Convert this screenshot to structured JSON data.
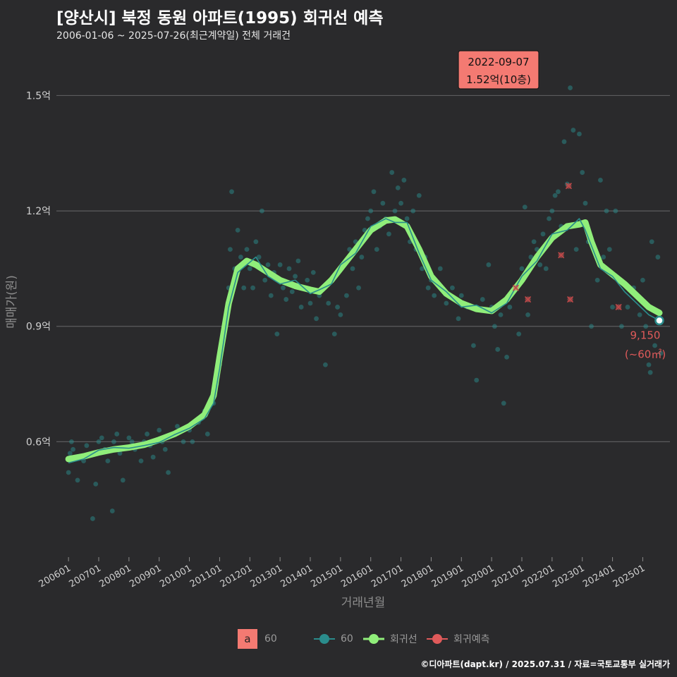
{
  "title": "[양산시] 북정 동원 아파트(1995) 회귀선 예측",
  "subtitle": "2006-01-06 ~ 2025-07-26(최근계약일) 전체 거래건",
  "caption": "©디아파트(dapt.kr) / 2025.07.31 / 자료=국토교통부 실거래가",
  "legend": {
    "fill_label": "a",
    "fill_value": "60",
    "items": [
      {
        "key": "area",
        "label": "60",
        "color": "#2a8c8c"
      },
      {
        "key": "regression",
        "label": "회귀선",
        "color": "#90ee7a"
      },
      {
        "key": "prediction",
        "label": "회귀예측",
        "color": "#e05a5a"
      }
    ]
  },
  "chart_data": {
    "type": "scatter",
    "xlabel": "거래년월",
    "ylabel": "매매가(원)",
    "x_ticks": [
      "200601",
      "200701",
      "200801",
      "200901",
      "201001",
      "201101",
      "201201",
      "201301",
      "201401",
      "201501",
      "201601",
      "201701",
      "201801",
      "201901",
      "202001",
      "202101",
      "202201",
      "202301",
      "202401",
      "202501"
    ],
    "y_ticks": [
      {
        "value": 0.6,
        "label": "0.6억"
      },
      {
        "value": 0.9,
        "label": "0.9억"
      },
      {
        "value": 1.2,
        "label": "1.2억"
      },
      {
        "value": 1.5,
        "label": "1.5억"
      }
    ],
    "xlim": [
      2005.6,
      2025.9
    ],
    "ylim": [
      0.3,
      1.62
    ],
    "grid": true,
    "series": [
      {
        "name": "회귀선",
        "color": "#90ee7a",
        "points": [
          [
            2006.0,
            0.555
          ],
          [
            2006.5,
            0.562
          ],
          [
            2007.0,
            0.572
          ],
          [
            2007.5,
            0.58
          ],
          [
            2008.0,
            0.585
          ],
          [
            2008.5,
            0.592
          ],
          [
            2009.0,
            0.605
          ],
          [
            2009.5,
            0.62
          ],
          [
            2010.0,
            0.64
          ],
          [
            2010.5,
            0.67
          ],
          [
            2010.8,
            0.72
          ],
          [
            2011.0,
            0.82
          ],
          [
            2011.3,
            0.96
          ],
          [
            2011.6,
            1.05
          ],
          [
            2011.9,
            1.07
          ],
          [
            2012.2,
            1.06
          ],
          [
            2012.6,
            1.04
          ],
          [
            2013.0,
            1.02
          ],
          [
            2013.5,
            1.005
          ],
          [
            2014.0,
            0.995
          ],
          [
            2014.3,
            0.99
          ],
          [
            2014.7,
            1.02
          ],
          [
            2015.0,
            1.05
          ],
          [
            2015.5,
            1.1
          ],
          [
            2016.0,
            1.15
          ],
          [
            2016.5,
            1.175
          ],
          [
            2016.8,
            1.178
          ],
          [
            2017.2,
            1.16
          ],
          [
            2017.6,
            1.1
          ],
          [
            2018.0,
            1.03
          ],
          [
            2018.5,
            0.985
          ],
          [
            2019.0,
            0.96
          ],
          [
            2019.5,
            0.945
          ],
          [
            2020.0,
            0.94
          ],
          [
            2020.5,
            0.97
          ],
          [
            2021.0,
            1.02
          ],
          [
            2021.5,
            1.08
          ],
          [
            2022.0,
            1.13
          ],
          [
            2022.5,
            1.16
          ],
          [
            2022.9,
            1.165
          ],
          [
            2023.1,
            1.17
          ],
          [
            2023.3,
            1.12
          ],
          [
            2023.6,
            1.06
          ],
          [
            2024.0,
            1.035
          ],
          [
            2024.4,
            1.01
          ],
          [
            2024.8,
            0.98
          ],
          [
            2025.2,
            0.95
          ],
          [
            2025.55,
            0.935
          ]
        ]
      },
      {
        "name": "60",
        "color": "#2a8c8c",
        "points": [
          [
            2006.0,
            0.545
          ],
          [
            2006.5,
            0.555
          ],
          [
            2007.0,
            0.578
          ],
          [
            2007.5,
            0.585
          ],
          [
            2008.0,
            0.583
          ],
          [
            2008.5,
            0.59
          ],
          [
            2009.0,
            0.598
          ],
          [
            2009.5,
            0.618
          ],
          [
            2010.0,
            0.635
          ],
          [
            2010.5,
            0.66
          ],
          [
            2010.8,
            0.7
          ],
          [
            2011.0,
            0.79
          ],
          [
            2011.3,
            0.95
          ],
          [
            2011.6,
            1.04
          ],
          [
            2011.9,
            1.06
          ],
          [
            2012.2,
            1.08
          ],
          [
            2012.6,
            1.03
          ],
          [
            2013.0,
            1.01
          ],
          [
            2013.5,
            1.02
          ],
          [
            2014.0,
            0.985
          ],
          [
            2014.3,
            0.995
          ],
          [
            2014.7,
            1.01
          ],
          [
            2015.0,
            1.06
          ],
          [
            2015.5,
            1.09
          ],
          [
            2016.0,
            1.16
          ],
          [
            2016.5,
            1.18
          ],
          [
            2016.8,
            1.17
          ],
          [
            2017.2,
            1.17
          ],
          [
            2017.6,
            1.09
          ],
          [
            2018.0,
            1.02
          ],
          [
            2018.5,
            0.99
          ],
          [
            2019.0,
            0.95
          ],
          [
            2019.5,
            0.955
          ],
          [
            2020.0,
            0.935
          ],
          [
            2020.5,
            0.96
          ],
          [
            2021.0,
            1.03
          ],
          [
            2021.5,
            1.07
          ],
          [
            2022.0,
            1.14
          ],
          [
            2022.5,
            1.15
          ],
          [
            2022.9,
            1.18
          ],
          [
            2023.1,
            1.15
          ],
          [
            2023.3,
            1.11
          ],
          [
            2023.6,
            1.05
          ],
          [
            2024.0,
            1.03
          ],
          [
            2024.4,
            0.99
          ],
          [
            2024.8,
            0.96
          ],
          [
            2025.2,
            0.93
          ],
          [
            2025.55,
            0.915
          ]
        ]
      }
    ],
    "scatter_points": [
      [
        2006.0,
        0.52
      ],
      [
        2006.05,
        0.57
      ],
      [
        2006.1,
        0.6
      ],
      [
        2006.15,
        0.58
      ],
      [
        2006.3,
        0.5
      ],
      [
        2006.5,
        0.55
      ],
      [
        2006.6,
        0.59
      ],
      [
        2006.8,
        0.4
      ],
      [
        2006.9,
        0.49
      ],
      [
        2007.0,
        0.6
      ],
      [
        2007.1,
        0.61
      ],
      [
        2007.2,
        0.58
      ],
      [
        2007.3,
        0.55
      ],
      [
        2007.45,
        0.42
      ],
      [
        2007.5,
        0.6
      ],
      [
        2007.6,
        0.62
      ],
      [
        2007.7,
        0.57
      ],
      [
        2007.8,
        0.5
      ],
      [
        2008.0,
        0.61
      ],
      [
        2008.1,
        0.6
      ],
      [
        2008.2,
        0.58
      ],
      [
        2008.4,
        0.55
      ],
      [
        2008.5,
        0.6
      ],
      [
        2008.6,
        0.62
      ],
      [
        2008.7,
        0.59
      ],
      [
        2008.8,
        0.56
      ],
      [
        2009.0,
        0.63
      ],
      [
        2009.1,
        0.6
      ],
      [
        2009.2,
        0.58
      ],
      [
        2009.3,
        0.52
      ],
      [
        2009.5,
        0.62
      ],
      [
        2009.6,
        0.64
      ],
      [
        2009.8,
        0.6
      ],
      [
        2010.0,
        0.63
      ],
      [
        2010.1,
        0.6
      ],
      [
        2010.3,
        0.65
      ],
      [
        2010.5,
        0.68
      ],
      [
        2010.6,
        0.62
      ],
      [
        2010.8,
        0.7
      ],
      [
        2010.9,
        0.75
      ],
      [
        2011.0,
        0.8
      ],
      [
        2011.1,
        0.86
      ],
      [
        2011.2,
        0.92
      ],
      [
        2011.3,
        1.0
      ],
      [
        2011.35,
        1.1
      ],
      [
        2011.4,
        1.25
      ],
      [
        2011.5,
        1.05
      ],
      [
        2011.6,
        1.15
      ],
      [
        2011.7,
        1.08
      ],
      [
        2011.8,
        1.0
      ],
      [
        2011.9,
        1.1
      ],
      [
        2012.0,
        1.05
      ],
      [
        2012.1,
        1.0
      ],
      [
        2012.2,
        1.12
      ],
      [
        2012.3,
        1.08
      ],
      [
        2012.4,
        1.2
      ],
      [
        2012.5,
        1.02
      ],
      [
        2012.6,
        1.06
      ],
      [
        2012.7,
        0.98
      ],
      [
        2012.8,
        1.04
      ],
      [
        2012.9,
        0.88
      ],
      [
        2013.0,
        1.06
      ],
      [
        2013.1,
        1.0
      ],
      [
        2013.2,
        0.97
      ],
      [
        2013.3,
        1.05
      ],
      [
        2013.4,
        0.99
      ],
      [
        2013.5,
        1.03
      ],
      [
        2013.6,
        1.07
      ],
      [
        2013.7,
        0.95
      ],
      [
        2013.8,
        1.0
      ],
      [
        2013.9,
        1.02
      ],
      [
        2014.0,
        0.96
      ],
      [
        2014.1,
        1.04
      ],
      [
        2014.2,
        0.92
      ],
      [
        2014.3,
        0.98
      ],
      [
        2014.4,
        1.0
      ],
      [
        2014.5,
        0.8
      ],
      [
        2014.6,
        0.96
      ],
      [
        2014.7,
        1.02
      ],
      [
        2014.8,
        0.88
      ],
      [
        2014.9,
        0.95
      ],
      [
        2015.0,
        0.93
      ],
      [
        2015.1,
        1.06
      ],
      [
        2015.2,
        0.98
      ],
      [
        2015.3,
        1.1
      ],
      [
        2015.4,
        1.05
      ],
      [
        2015.5,
        1.12
      ],
      [
        2015.6,
        1.0
      ],
      [
        2015.7,
        1.08
      ],
      [
        2015.8,
        1.15
      ],
      [
        2015.9,
        1.18
      ],
      [
        2016.0,
        1.2
      ],
      [
        2016.1,
        1.25
      ],
      [
        2016.2,
        1.1
      ],
      [
        2016.3,
        1.16
      ],
      [
        2016.4,
        1.22
      ],
      [
        2016.5,
        1.18
      ],
      [
        2016.6,
        1.14
      ],
      [
        2016.7,
        1.3
      ],
      [
        2016.8,
        1.2
      ],
      [
        2016.9,
        1.26
      ],
      [
        2017.0,
        1.22
      ],
      [
        2017.1,
        1.28
      ],
      [
        2017.2,
        1.18
      ],
      [
        2017.3,
        1.12
      ],
      [
        2017.4,
        1.2
      ],
      [
        2017.5,
        1.1
      ],
      [
        2017.6,
        1.24
      ],
      [
        2017.7,
        1.05
      ],
      [
        2017.8,
        1.08
      ],
      [
        2017.9,
        1.0
      ],
      [
        2018.0,
        1.02
      ],
      [
        2018.1,
        0.98
      ],
      [
        2018.3,
        1.05
      ],
      [
        2018.5,
        0.96
      ],
      [
        2018.7,
        1.0
      ],
      [
        2018.9,
        0.92
      ],
      [
        2019.0,
        0.98
      ],
      [
        2019.2,
        0.95
      ],
      [
        2019.4,
        0.85
      ],
      [
        2019.5,
        0.76
      ],
      [
        2019.7,
        0.97
      ],
      [
        2019.9,
        1.06
      ],
      [
        2020.0,
        0.95
      ],
      [
        2020.1,
        0.9
      ],
      [
        2020.2,
        0.84
      ],
      [
        2020.3,
        0.93
      ],
      [
        2020.4,
        0.7
      ],
      [
        2020.5,
        0.82
      ],
      [
        2020.6,
        0.95
      ],
      [
        2020.7,
        0.99
      ],
      [
        2020.8,
        1.0
      ],
      [
        2020.9,
        0.88
      ],
      [
        2021.0,
        1.05
      ],
      [
        2021.1,
        1.21
      ],
      [
        2021.2,
        0.93
      ],
      [
        2021.3,
        1.08
      ],
      [
        2021.4,
        1.12
      ],
      [
        2021.5,
        1.1
      ],
      [
        2021.6,
        1.06
      ],
      [
        2021.7,
        1.14
      ],
      [
        2021.8,
        1.05
      ],
      [
        2021.9,
        1.18
      ],
      [
        2022.0,
        1.2
      ],
      [
        2022.1,
        1.24
      ],
      [
        2022.2,
        1.25
      ],
      [
        2022.3,
        1.16
      ],
      [
        2022.4,
        1.38
      ],
      [
        2022.5,
        1.27
      ],
      [
        2022.6,
        1.52
      ],
      [
        2022.7,
        1.41
      ],
      [
        2022.8,
        1.1
      ],
      [
        2022.9,
        1.4
      ],
      [
        2023.0,
        1.3
      ],
      [
        2023.1,
        1.22
      ],
      [
        2023.2,
        1.12
      ],
      [
        2023.3,
        0.9
      ],
      [
        2023.5,
        1.02
      ],
      [
        2023.6,
        1.28
      ],
      [
        2023.7,
        1.08
      ],
      [
        2023.8,
        1.2
      ],
      [
        2023.9,
        1.1
      ],
      [
        2024.0,
        0.95
      ],
      [
        2024.1,
        1.2
      ],
      [
        2024.2,
        1.02
      ],
      [
        2024.3,
        0.9
      ],
      [
        2024.5,
        0.95
      ],
      [
        2024.7,
        1.0
      ],
      [
        2024.9,
        0.93
      ],
      [
        2025.0,
        1.02
      ],
      [
        2025.1,
        0.9
      ],
      [
        2025.2,
        0.8
      ],
      [
        2025.25,
        0.78
      ],
      [
        2025.3,
        1.12
      ],
      [
        2025.4,
        0.85
      ],
      [
        2025.5,
        1.08
      ],
      [
        2025.6,
        0.83
      ]
    ],
    "prediction_points": [
      [
        2020.8,
        1.0
      ],
      [
        2021.2,
        0.97
      ],
      [
        2022.3,
        1.085
      ],
      [
        2022.55,
        1.265
      ],
      [
        2022.6,
        0.97
      ],
      [
        2024.2,
        0.95
      ]
    ],
    "annotations": [
      {
        "x": 2022.6,
        "y": 1.52,
        "label_date": "2022-09-07",
        "label_value": "1.52억(10층)"
      },
      {
        "x": 2025.55,
        "y": 0.915,
        "label_value": "9,150",
        "label_area": "(~60㎡)"
      }
    ]
  }
}
